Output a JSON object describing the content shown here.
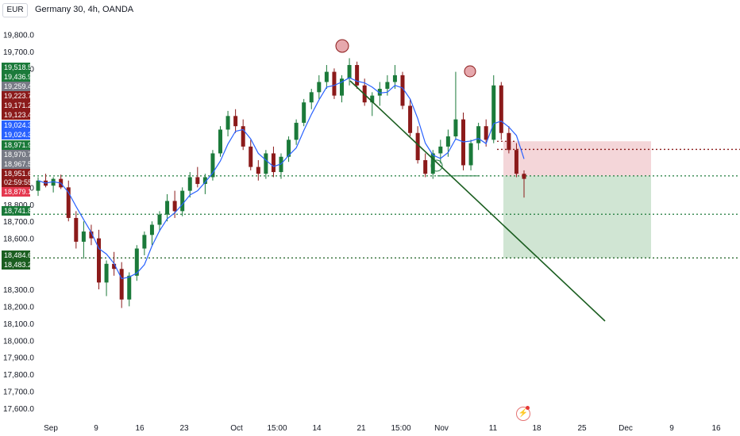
{
  "header": {
    "symbol": "Germany 30, 4h, OANDA",
    "currency": "EUR"
  },
  "footer": {
    "flash_icon": "lightning-icon"
  },
  "chart_data": {
    "type": "candlestick",
    "title": "Germany 30, 4h, OANDA",
    "currency": "EUR",
    "y_ticks": [
      "19,800.0",
      "19,700.0",
      "19,600.0",
      "18,900.0",
      "18,800.0",
      "18,700.0",
      "18,600.0",
      "18,300.0",
      "18,200.0",
      "18,100.0",
      "18,000.0",
      "17,900.0",
      "17,800.0",
      "17,700.0",
      "17,600.0"
    ],
    "y_tick_values": [
      19800,
      19700,
      19600,
      18900,
      18800,
      18700,
      18600,
      18300,
      18200,
      18100,
      18000,
      17900,
      17800,
      17700,
      17600
    ],
    "x_ticks": [
      "Sep",
      "9",
      "16",
      "23",
      "Oct",
      "15:00",
      "14",
      "21",
      "15:00",
      "Nov",
      "11",
      "18",
      "25",
      "Dec",
      "9",
      "16"
    ],
    "price_labels": [
      {
        "text": "19,518.5",
        "value": 19518.5,
        "color": "#1b7a3a"
      },
      {
        "text": "19,436.9",
        "value": 19436.9,
        "color": "#1b7a3a"
      },
      {
        "text": "19,259.4",
        "value": 19259.4,
        "color": "#787b86"
      },
      {
        "text": "19,223.7",
        "value": 19223.7,
        "color": "#8b1a1a"
      },
      {
        "text": "19,171.2",
        "value": 19171.2,
        "color": "#8b1a1a"
      },
      {
        "text": "19,123.4",
        "value": 19123.4,
        "color": "#8b1a1a"
      },
      {
        "text": "19,024.3",
        "value": 19024.3,
        "color": "#2962ff"
      },
      {
        "text": "19,024.3",
        "value": 19024.3,
        "color": "#2962ff"
      },
      {
        "text": "18,971.9",
        "value": 18971.9,
        "color": "#1b7a3a"
      },
      {
        "text": "18,970.7",
        "value": 18970.7,
        "color": "#787b86"
      },
      {
        "text": "18,967.5",
        "value": 18967.5,
        "color": "#787b86"
      },
      {
        "text": "18,951.6",
        "value": 18951.6,
        "color": "#8b1a1a"
      },
      {
        "text": "02:59:55",
        "value": 18951.6,
        "color": "#8b1a1a"
      },
      {
        "text": "18,879.1",
        "value": 18879.1,
        "color": "#e53950"
      },
      {
        "text": "18,741.8",
        "value": 18741.8,
        "color": "#1b7a3a"
      },
      {
        "text": "18,484.6",
        "value": 18484.6,
        "color": "#1b5e20"
      },
      {
        "text": "18,483.2",
        "value": 18483.2,
        "color": "#1b5e20"
      }
    ],
    "horizontal_levels": [
      {
        "value": 18967.5,
        "style": "dotted",
        "color": "#1b7a3a"
      },
      {
        "value": 18741.8,
        "style": "dotted",
        "color": "#1b7a3a"
      },
      {
        "value": 18484.6,
        "style": "dotted",
        "color": "#1b5e20"
      },
      {
        "value": 19123.4,
        "style": "dotted",
        "color": "#8b1a1a"
      }
    ],
    "position_tool": {
      "entry": 18967.5,
      "stop": 19171.2,
      "target": 18484.6,
      "stop_zone_color": "#f2cfd2",
      "target_zone_color": "#c8e0cb"
    },
    "trendline": {
      "color": "#1b5e20"
    },
    "ohlc_sample": [
      {
        "t": 0,
        "o": 18880,
        "h": 18960,
        "l": 18850,
        "c": 18940
      },
      {
        "t": 1,
        "o": 18940,
        "h": 18980,
        "l": 18900,
        "c": 18910
      },
      {
        "t": 2,
        "o": 18910,
        "h": 18960,
        "l": 18870,
        "c": 18950
      },
      {
        "t": 3,
        "o": 18950,
        "h": 18975,
        "l": 18890,
        "c": 18900
      },
      {
        "t": 4,
        "o": 18900,
        "h": 18940,
        "l": 18700,
        "c": 18720
      },
      {
        "t": 5,
        "o": 18720,
        "h": 18760,
        "l": 18540,
        "c": 18580
      },
      {
        "t": 6,
        "o": 18580,
        "h": 18700,
        "l": 18480,
        "c": 18640
      },
      {
        "t": 7,
        "o": 18640,
        "h": 18680,
        "l": 18560,
        "c": 18600
      },
      {
        "t": 8,
        "o": 18600,
        "h": 18650,
        "l": 18300,
        "c": 18340
      },
      {
        "t": 9,
        "o": 18340,
        "h": 18470,
        "l": 18260,
        "c": 18450
      },
      {
        "t": 10,
        "o": 18450,
        "h": 18520,
        "l": 18380,
        "c": 18420
      },
      {
        "t": 11,
        "o": 18420,
        "h": 18460,
        "l": 18190,
        "c": 18240
      },
      {
        "t": 12,
        "o": 18240,
        "h": 18400,
        "l": 18200,
        "c": 18380
      },
      {
        "t": 13,
        "o": 18380,
        "h": 18560,
        "l": 18350,
        "c": 18540
      },
      {
        "t": 14,
        "o": 18540,
        "h": 18640,
        "l": 18500,
        "c": 18620
      },
      {
        "t": 15,
        "o": 18620,
        "h": 18700,
        "l": 18560,
        "c": 18680
      },
      {
        "t": 16,
        "o": 18680,
        "h": 18760,
        "l": 18640,
        "c": 18740
      },
      {
        "t": 17,
        "o": 18740,
        "h": 18860,
        "l": 18700,
        "c": 18820
      },
      {
        "t": 18,
        "o": 18820,
        "h": 18880,
        "l": 18720,
        "c": 18760
      },
      {
        "t": 19,
        "o": 18760,
        "h": 18900,
        "l": 18730,
        "c": 18880
      },
      {
        "t": 20,
        "o": 18880,
        "h": 18990,
        "l": 18840,
        "c": 18960
      },
      {
        "t": 21,
        "o": 18960,
        "h": 19020,
        "l": 18900,
        "c": 18920
      },
      {
        "t": 22,
        "o": 18920,
        "h": 18980,
        "l": 18860,
        "c": 18960
      },
      {
        "t": 23,
        "o": 18960,
        "h": 19120,
        "l": 18940,
        "c": 19100
      },
      {
        "t": 24,
        "o": 19100,
        "h": 19260,
        "l": 19080,
        "c": 19240
      },
      {
        "t": 25,
        "o": 19240,
        "h": 19350,
        "l": 19200,
        "c": 19320
      },
      {
        "t": 26,
        "o": 19320,
        "h": 19360,
        "l": 19220,
        "c": 19260
      },
      {
        "t": 27,
        "o": 19260,
        "h": 19300,
        "l": 19120,
        "c": 19140
      },
      {
        "t": 28,
        "o": 19140,
        "h": 19180,
        "l": 19000,
        "c": 19020
      },
      {
        "t": 29,
        "o": 19020,
        "h": 19060,
        "l": 18940,
        "c": 18980
      },
      {
        "t": 30,
        "o": 18980,
        "h": 19120,
        "l": 18950,
        "c": 19100
      },
      {
        "t": 31,
        "o": 19100,
        "h": 19140,
        "l": 18960,
        "c": 18990
      },
      {
        "t": 32,
        "o": 18990,
        "h": 19100,
        "l": 18950,
        "c": 19080
      },
      {
        "t": 33,
        "o": 19080,
        "h": 19200,
        "l": 19050,
        "c": 19180
      },
      {
        "t": 34,
        "o": 19180,
        "h": 19300,
        "l": 19150,
        "c": 19280
      },
      {
        "t": 35,
        "o": 19280,
        "h": 19420,
        "l": 19260,
        "c": 19400
      },
      {
        "t": 36,
        "o": 19400,
        "h": 19480,
        "l": 19360,
        "c": 19460
      },
      {
        "t": 37,
        "o": 19460,
        "h": 19560,
        "l": 19420,
        "c": 19520
      },
      {
        "t": 38,
        "o": 19520,
        "h": 19620,
        "l": 19480,
        "c": 19580
      },
      {
        "t": 39,
        "o": 19580,
        "h": 19600,
        "l": 19420,
        "c": 19440
      },
      {
        "t": 40,
        "o": 19440,
        "h": 19560,
        "l": 19400,
        "c": 19540
      },
      {
        "t": 41,
        "o": 19540,
        "h": 19660,
        "l": 19500,
        "c": 19620
      },
      {
        "t": 42,
        "o": 19620,
        "h": 19640,
        "l": 19480,
        "c": 19500
      },
      {
        "t": 43,
        "o": 19500,
        "h": 19540,
        "l": 19380,
        "c": 19400
      },
      {
        "t": 44,
        "o": 19400,
        "h": 19460,
        "l": 19320,
        "c": 19440
      },
      {
        "t": 45,
        "o": 19440,
        "h": 19520,
        "l": 19380,
        "c": 19480
      },
      {
        "t": 46,
        "o": 19480,
        "h": 19560,
        "l": 19440,
        "c": 19520
      },
      {
        "t": 47,
        "o": 19520,
        "h": 19620,
        "l": 19480,
        "c": 19560
      },
      {
        "t": 48,
        "o": 19560,
        "h": 19580,
        "l": 19360,
        "c": 19380
      },
      {
        "t": 49,
        "o": 19380,
        "h": 19420,
        "l": 19200,
        "c": 19220
      },
      {
        "t": 50,
        "o": 19220,
        "h": 19260,
        "l": 19040,
        "c": 19060
      },
      {
        "t": 51,
        "o": 19060,
        "h": 19100,
        "l": 18960,
        "c": 18980
      },
      {
        "t": 52,
        "o": 18980,
        "h": 19120,
        "l": 18950,
        "c": 19100
      },
      {
        "t": 53,
        "o": 19100,
        "h": 19180,
        "l": 19040,
        "c": 19140
      },
      {
        "t": 54,
        "o": 19140,
        "h": 19240,
        "l": 19080,
        "c": 19200
      },
      {
        "t": 55,
        "o": 19200,
        "h": 19580,
        "l": 19180,
        "c": 19300
      },
      {
        "t": 56,
        "o": 19300,
        "h": 19340,
        "l": 19000,
        "c": 19030
      },
      {
        "t": 57,
        "o": 19030,
        "h": 19180,
        "l": 19000,
        "c": 19160
      },
      {
        "t": 58,
        "o": 19160,
        "h": 19280,
        "l": 19120,
        "c": 19260
      },
      {
        "t": 59,
        "o": 19260,
        "h": 19300,
        "l": 19140,
        "c": 19180
      },
      {
        "t": 60,
        "o": 19180,
        "h": 19560,
        "l": 19160,
        "c": 19500
      },
      {
        "t": 61,
        "o": 19500,
        "h": 19520,
        "l": 19180,
        "c": 19220
      },
      {
        "t": 62,
        "o": 19220,
        "h": 19260,
        "l": 19100,
        "c": 19120
      },
      {
        "t": 63,
        "o": 19120,
        "h": 19160,
        "l": 18960,
        "c": 18980
      },
      {
        "t": 64,
        "o": 18980,
        "h": 19000,
        "l": 18840,
        "c": 18950
      }
    ]
  }
}
